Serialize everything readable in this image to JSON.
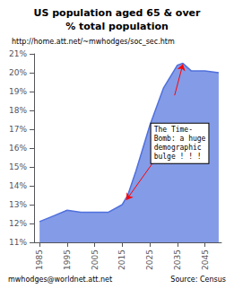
{
  "chart_data": {
    "type": "area",
    "title": "US population aged 65 & over",
    "subtitle": "% total population",
    "link": "http://home.att.net/~mwhodges/soc_sec.htm",
    "credit": "mwhodges@worldnet.att.net",
    "source": "Source: Census",
    "x": [
      1985,
      1990,
      1995,
      2000,
      2005,
      2010,
      2015,
      2017,
      2020,
      2025,
      2030,
      2035,
      2037,
      2040,
      2045,
      2050
    ],
    "values": [
      12.1,
      12.4,
      12.7,
      12.6,
      12.6,
      12.6,
      13.0,
      13.5,
      14.8,
      17.2,
      19.2,
      20.4,
      20.5,
      20.1,
      20.1,
      20.0
    ],
    "xlim": [
      1983,
      2051
    ],
    "xticks": [
      1985,
      1995,
      2005,
      2015,
      2025,
      2035,
      2045
    ],
    "ylim": [
      11,
      21
    ],
    "yticks": [
      {
        "value": 11,
        "label": "11%"
      },
      {
        "value": 12,
        "label": "12%"
      },
      {
        "value": 13,
        "label": "13%"
      },
      {
        "value": 14,
        "label": "14%"
      },
      {
        "value": 15,
        "label": "15%"
      },
      {
        "value": 16,
        "label": "16%"
      },
      {
        "value": 17,
        "label": "17%"
      },
      {
        "value": 18,
        "label": "18%"
      },
      {
        "value": 19,
        "label": "19%"
      },
      {
        "value": 20,
        "label": "20%"
      },
      {
        "value": 21,
        "label": "21%"
      }
    ],
    "grid": false,
    "annotations": [
      {
        "text": "The Time-\nBomb: a huge\ndemographic\nbulge ! ! !",
        "x": 2025.5,
        "y": 15.2
      }
    ],
    "arrows": [
      {
        "from": [
          2026,
          15.2
        ],
        "to": [
          2016.5,
          13.25
        ],
        "color": "red"
      },
      {
        "from": [
          2034,
          18.8
        ],
        "to": [
          2037,
          20.45
        ],
        "color": "red"
      }
    ]
  }
}
